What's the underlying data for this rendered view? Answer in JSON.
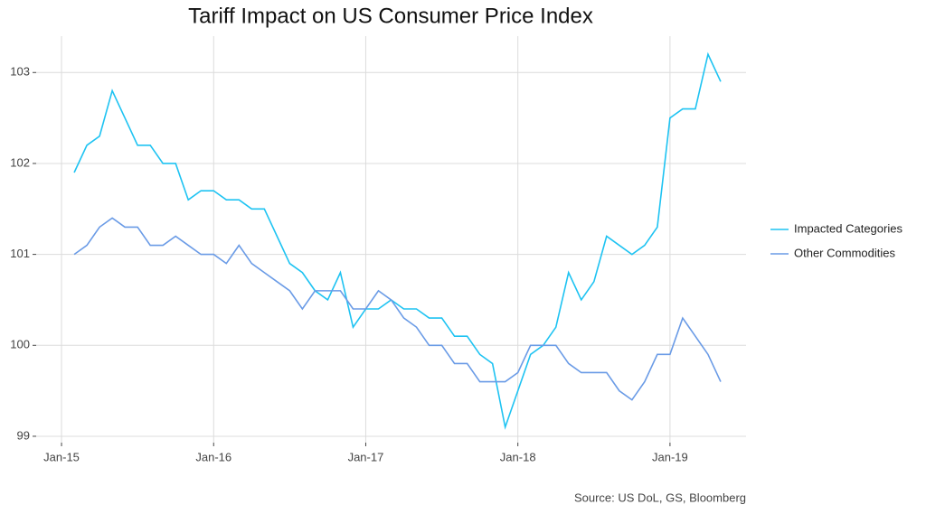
{
  "chart_data": {
    "type": "line",
    "title": "Tariff Impact on US Consumer Price Index",
    "source": "Source: US DoL, GS, Bloomberg",
    "x": [
      "2015-02",
      "2015-03",
      "2015-04",
      "2015-05",
      "2015-06",
      "2015-07",
      "2015-08",
      "2015-09",
      "2015-10",
      "2015-11",
      "2015-12",
      "2016-01",
      "2016-02",
      "2016-03",
      "2016-04",
      "2016-05",
      "2016-06",
      "2016-07",
      "2016-08",
      "2016-09",
      "2016-10",
      "2016-11",
      "2016-12",
      "2017-01",
      "2017-02",
      "2017-03",
      "2017-04",
      "2017-05",
      "2017-06",
      "2017-07",
      "2017-08",
      "2017-09",
      "2017-10",
      "2017-11",
      "2017-12",
      "2018-01",
      "2018-02",
      "2018-03",
      "2018-04",
      "2018-05",
      "2018-06",
      "2018-07",
      "2018-08",
      "2018-09",
      "2018-10",
      "2018-11",
      "2018-12",
      "2019-01",
      "2019-02",
      "2019-03",
      "2019-04",
      "2019-05"
    ],
    "series": [
      {
        "name": "Impacted Categories",
        "color": "#1ec3f2",
        "values": [
          101.9,
          102.2,
          102.3,
          102.8,
          102.5,
          102.2,
          102.2,
          102.0,
          102.0,
          101.6,
          101.7,
          101.7,
          101.6,
          101.6,
          101.5,
          101.5,
          101.2,
          100.9,
          100.8,
          100.6,
          100.5,
          100.8,
          100.2,
          100.4,
          100.4,
          100.5,
          100.4,
          100.4,
          100.3,
          100.3,
          100.1,
          100.1,
          99.9,
          99.8,
          99.1,
          99.5,
          99.9,
          100.0,
          100.2,
          100.8,
          100.5,
          100.7,
          101.2,
          101.1,
          101.0,
          101.1,
          101.3,
          102.5,
          102.6,
          102.6,
          103.2,
          102.9
        ]
      },
      {
        "name": "Other Commodities",
        "color": "#6a9be6",
        "values": [
          101.0,
          101.1,
          101.3,
          101.4,
          101.3,
          101.3,
          101.1,
          101.1,
          101.2,
          101.1,
          101.0,
          101.0,
          100.9,
          101.1,
          100.9,
          100.8,
          100.7,
          100.6,
          100.4,
          100.6,
          100.6,
          100.6,
          100.4,
          100.4,
          100.6,
          100.5,
          100.3,
          100.2,
          100.0,
          100.0,
          99.8,
          99.8,
          99.6,
          99.6,
          99.6,
          99.7,
          100.0,
          100.0,
          100.0,
          99.8,
          99.7,
          99.7,
          99.7,
          99.5,
          99.4,
          99.6,
          99.9,
          99.9,
          100.3,
          100.1,
          99.9,
          99.6
        ]
      }
    ],
    "xlim": [
      "2014-11",
      "2019-07"
    ],
    "xticks": [
      {
        "value": "2015-01",
        "label": "Jan-15"
      },
      {
        "value": "2016-01",
        "label": "Jan-16"
      },
      {
        "value": "2017-01",
        "label": "Jan-17"
      },
      {
        "value": "2018-01",
        "label": "Jan-18"
      },
      {
        "value": "2019-01",
        "label": "Jan-19"
      }
    ],
    "ylim": [
      98.93,
      103.4
    ],
    "yticks": [
      99,
      100,
      101,
      102,
      103
    ],
    "grid": true,
    "legend": "right"
  }
}
